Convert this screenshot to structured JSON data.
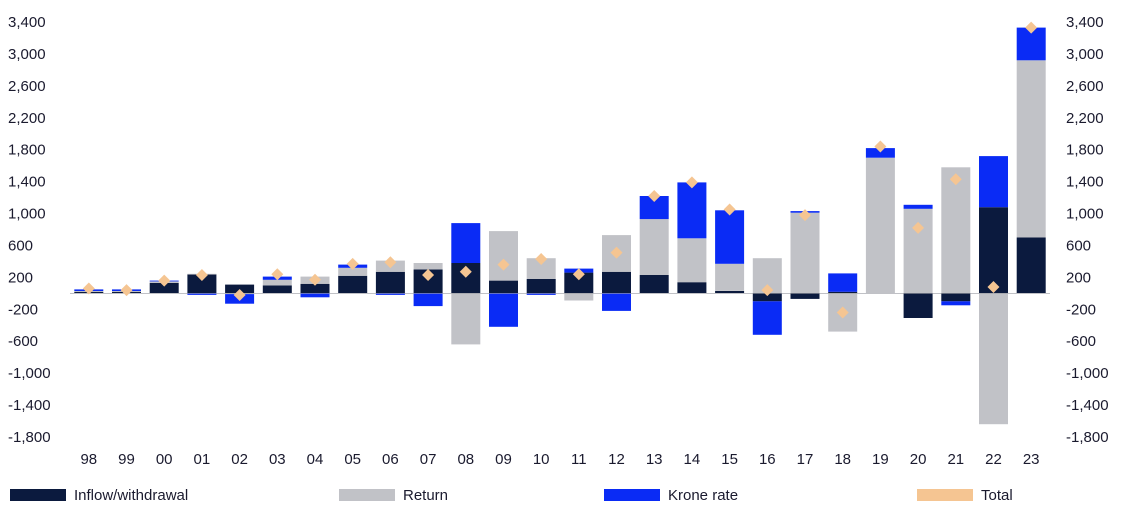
{
  "chart_data": {
    "type": "bar",
    "stacked": true,
    "title": "",
    "xlabel": "",
    "ylabel": "",
    "ylim": [
      -1800,
      3400
    ],
    "yticks": [
      3400,
      3000,
      2600,
      2200,
      1800,
      1400,
      1000,
      600,
      200,
      -200,
      -600,
      -1000,
      -1400,
      -1800
    ],
    "ytick_labels": [
      "3,400",
      "3,000",
      "2,600",
      "2,200",
      "1,800",
      "1,400",
      "1,000",
      "600",
      "200",
      "-200",
      "-600",
      "-1,000",
      "-1,400",
      "-1,800"
    ],
    "grid": false,
    "legend_position": "bottom",
    "categories": [
      "98",
      "99",
      "00",
      "01",
      "02",
      "03",
      "04",
      "05",
      "06",
      "07",
      "08",
      "09",
      "10",
      "11",
      "12",
      "13",
      "14",
      "15",
      "16",
      "17",
      "18",
      "19",
      "20",
      "21",
      "22",
      "23"
    ],
    "series": [
      {
        "name": "Inflow/withdrawal",
        "color": "#0b1a3e",
        "values": [
          20,
          20,
          130,
          240,
          110,
          100,
          120,
          220,
          270,
          300,
          380,
          160,
          180,
          260,
          270,
          230,
          140,
          30,
          -100,
          -70,
          20,
          0,
          -310,
          -100,
          1080,
          700
        ]
      },
      {
        "name": "Return",
        "color": "#c1c2c7",
        "values": [
          10,
          10,
          20,
          5,
          -10,
          70,
          90,
          100,
          140,
          80,
          -640,
          620,
          260,
          -90,
          460,
          700,
          550,
          340,
          440,
          1010,
          -480,
          1700,
          1060,
          1580,
          -1640,
          2220
        ]
      },
      {
        "name": "Krone rate",
        "color": "#0a2bf5",
        "values": [
          20,
          20,
          10,
          -20,
          -120,
          40,
          -50,
          40,
          -20,
          -160,
          500,
          -420,
          -20,
          50,
          -220,
          290,
          700,
          670,
          -420,
          20,
          230,
          120,
          50,
          -50,
          640,
          410
        ]
      },
      {
        "name": "Total",
        "color": "#f5c592",
        "marker": "diamond",
        "values": [
          60,
          40,
          160,
          230,
          -20,
          240,
          170,
          370,
          390,
          230,
          270,
          360,
          430,
          240,
          510,
          1220,
          1390,
          1050,
          40,
          980,
          -240,
          1840,
          820,
          1430,
          80,
          3330
        ]
      }
    ]
  }
}
